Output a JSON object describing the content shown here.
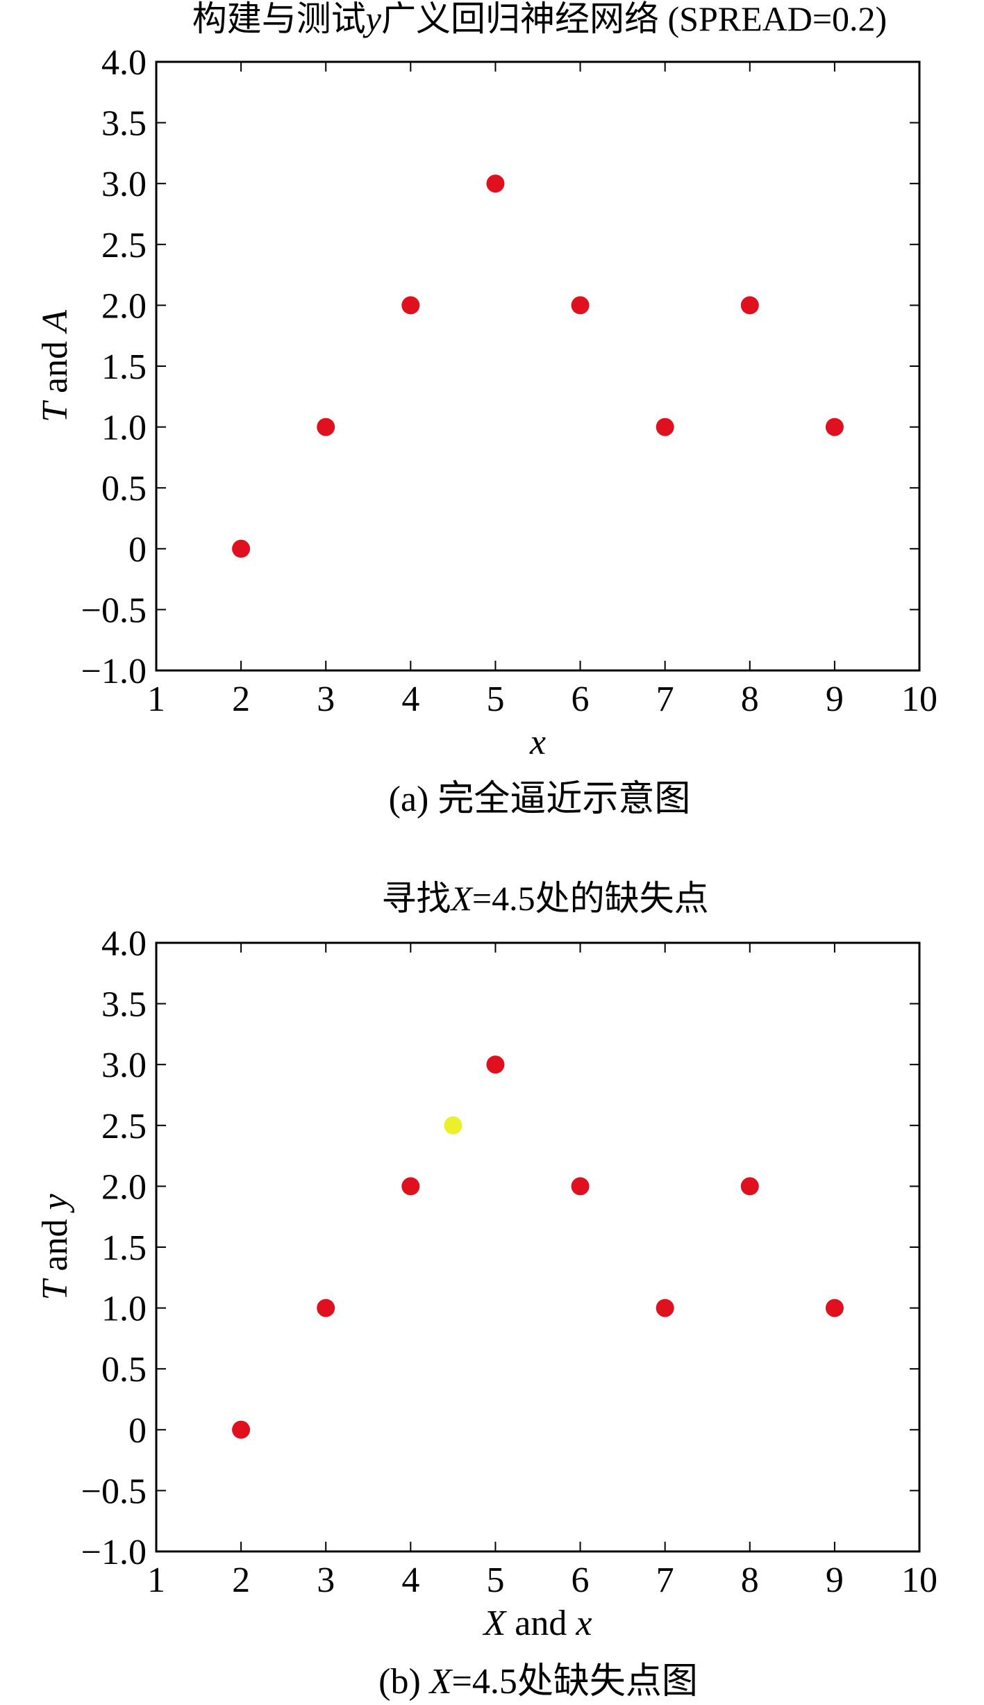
{
  "panels": [
    {
      "title": {
        "pre": "构建与测试",
        "var": "y",
        "post": "广义回归神经网络 (SPREAD=0.2)"
      },
      "xlabel": {
        "parts": [
          {
            "text": "x",
            "italic": true
          }
        ]
      },
      "ylabel": {
        "parts": [
          {
            "text": "T",
            "italic": true
          },
          {
            "text": " and ",
            "italic": false
          },
          {
            "text": "A",
            "italic": true
          }
        ]
      },
      "caption": {
        "pre": "(a) 完全逼近示意图",
        "var": "",
        "post": ""
      }
    },
    {
      "title": {
        "pre": "寻找",
        "var": "X",
        "post": "=4.5处的缺失点"
      },
      "xlabel": {
        "parts": [
          {
            "text": "X",
            "italic": true
          },
          {
            "text": " and ",
            "italic": false
          },
          {
            "text": "x",
            "italic": true
          }
        ]
      },
      "ylabel": {
        "parts": [
          {
            "text": "T",
            "italic": true
          },
          {
            "text": " and ",
            "italic": false
          },
          {
            "text": "y",
            "italic": true
          }
        ]
      },
      "caption": {
        "pre": "(b) ",
        "var": "X",
        "post": "=4.5处缺失点图"
      }
    }
  ],
  "colors": {
    "data_point": "#e0101e",
    "missing_point": "#eaf02a",
    "axes": "#000000"
  },
  "chart_data": [
    {
      "type": "scatter",
      "title": "构建与测试y广义回归神经网络 (SPREAD=0.2)",
      "xlabel": "x",
      "ylabel": "T and A",
      "xlim": [
        1,
        10
      ],
      "ylim": [
        -1.0,
        4.0
      ],
      "xticks": [
        "1",
        "2",
        "3",
        "4",
        "5",
        "6",
        "7",
        "8",
        "9",
        "10"
      ],
      "yticks": [
        "4.0",
        "3.5",
        "3.0",
        "2.5",
        "2.0",
        "1.5",
        "1.0",
        "0.5",
        "0",
        "−0.5",
        "−1.0"
      ],
      "grid": false,
      "series": [
        {
          "x": [
            2,
            3,
            4,
            5,
            6,
            7,
            8,
            9
          ],
          "y": [
            0,
            1,
            2,
            3,
            2,
            1,
            2,
            1
          ],
          "color": "#e0101e"
        }
      ]
    },
    {
      "type": "scatter",
      "title": "寻找X=4.5处的缺失点",
      "xlabel": "X and x",
      "ylabel": "T and y",
      "xlim": [
        1,
        10
      ],
      "ylim": [
        -1.0,
        4.0
      ],
      "xticks": [
        "1",
        "2",
        "3",
        "4",
        "5",
        "6",
        "7",
        "8",
        "9",
        "10"
      ],
      "yticks": [
        "4.0",
        "3.5",
        "3.0",
        "2.5",
        "2.0",
        "1.5",
        "1.0",
        "0.5",
        "0",
        "−0.5",
        "−1.0"
      ],
      "grid": false,
      "series": [
        {
          "x": [
            2,
            3,
            4,
            5,
            6,
            7,
            8,
            9
          ],
          "y": [
            0,
            1,
            2,
            3,
            2,
            1,
            2,
            1
          ],
          "color": "#e0101e"
        },
        {
          "x": [
            4.5
          ],
          "y": [
            2.5
          ],
          "color": "#eaf02a"
        }
      ]
    }
  ]
}
